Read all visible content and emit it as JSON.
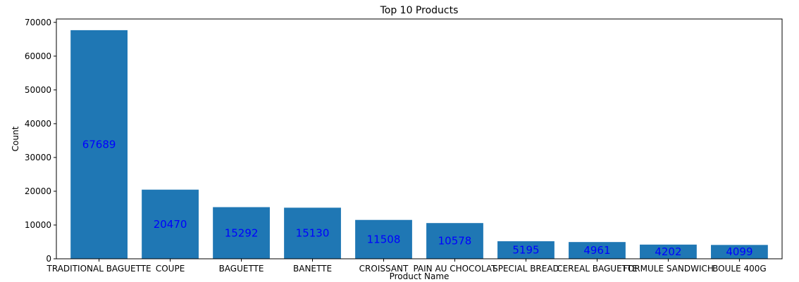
{
  "chart_data": {
    "type": "bar",
    "title": "Top 10 Products",
    "xlabel": "Product Name",
    "ylabel": "Count",
    "categories": [
      "TRADITIONAL BAGUETTE",
      "COUPE",
      "BAGUETTE",
      "BANETTE",
      "CROISSANT",
      "PAIN AU CHOCOLAT",
      "SPECIAL BREAD",
      "CEREAL BAGUETTE",
      "FORMULE SANDWICH",
      "BOULE 400G"
    ],
    "values": [
      67689,
      20470,
      15292,
      15130,
      11508,
      10578,
      5195,
      4961,
      4202,
      4099
    ],
    "value_labels": [
      "67689",
      "20470",
      "15292",
      "15130",
      "11508",
      "10578",
      "5195",
      "4961",
      "4202",
      "4099"
    ],
    "ylim": [
      0,
      71000
    ],
    "yticks": [
      0,
      10000,
      20000,
      30000,
      40000,
      50000,
      60000,
      70000
    ],
    "ytick_labels": [
      "0",
      "10000",
      "20000",
      "30000",
      "40000",
      "50000",
      "60000",
      "70000"
    ],
    "grid": false,
    "colors": {
      "bar": "#1f77b4",
      "label": "#0000ff",
      "axis": "#000000"
    }
  }
}
